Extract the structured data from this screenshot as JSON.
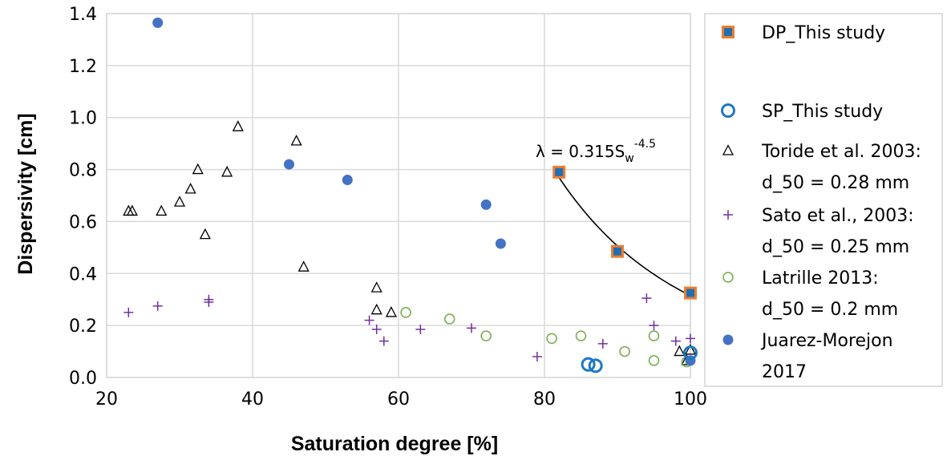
{
  "chart_data": {
    "type": "scatter",
    "xlabel": "Saturation degree [%]",
    "ylabel": "Dispersivity [cm]",
    "xlim": [
      20,
      100
    ],
    "ylim": [
      0,
      1.4
    ],
    "x_ticks": [
      "20",
      "40",
      "60",
      "80",
      "100"
    ],
    "y_ticks": [
      "0.0",
      "0.2",
      "0.4",
      "0.6",
      "0.8",
      "1.0",
      "1.2",
      "1.4"
    ],
    "grid": true,
    "legend_position": "right",
    "annotation": {
      "prefix": "λ = 0.315S",
      "subscript": "w",
      "superscript": "-4.5"
    },
    "fit_curve": {
      "coefficient": 0.315,
      "exponent": -4.5,
      "x_range": [
        82,
        100
      ]
    },
    "series": [
      {
        "name_lines": [
          "DP_This study"
        ],
        "marker": "square-filled",
        "color": "#1f6fb4",
        "edge_color": "#ed7d31",
        "points": [
          [
            82,
            0.79
          ],
          [
            90,
            0.485
          ],
          [
            100,
            0.325
          ]
        ]
      },
      {
        "name_lines": [
          "SP_This study"
        ],
        "marker": "circle-open-thick",
        "color": "#1f77c4",
        "points": [
          [
            86,
            0.05
          ],
          [
            87,
            0.045
          ],
          [
            100,
            0.095
          ]
        ]
      },
      {
        "name_lines": [
          "Toride et al. 2003:",
          "d_50 = 0.28 mm"
        ],
        "marker": "triangle-open",
        "color": "#000000",
        "points": [
          [
            23,
            0.64
          ],
          [
            23.5,
            0.64
          ],
          [
            27.5,
            0.64
          ],
          [
            30,
            0.675
          ],
          [
            31.5,
            0.725
          ],
          [
            32.5,
            0.8
          ],
          [
            33.5,
            0.55
          ],
          [
            36.5,
            0.79
          ],
          [
            38,
            0.965
          ],
          [
            46,
            0.91
          ],
          [
            47,
            0.425
          ],
          [
            57,
            0.345
          ],
          [
            57,
            0.26
          ],
          [
            59,
            0.25
          ],
          [
            98.5,
            0.1
          ],
          [
            99.5,
            0.065
          ],
          [
            100,
            0.105
          ]
        ]
      },
      {
        "name_lines": [
          "Sato et al., 2003:",
          "d_50 = 0.25 mm"
        ],
        "marker": "plus",
        "color": "#7030a0",
        "points": [
          [
            23,
            0.25
          ],
          [
            27,
            0.275
          ],
          [
            34,
            0.3
          ],
          [
            34,
            0.29
          ],
          [
            56,
            0.22
          ],
          [
            57,
            0.185
          ],
          [
            58,
            0.14
          ],
          [
            63,
            0.185
          ],
          [
            70,
            0.19
          ],
          [
            79,
            0.08
          ],
          [
            88,
            0.13
          ],
          [
            94,
            0.305
          ],
          [
            95,
            0.2
          ],
          [
            98,
            0.14
          ],
          [
            100,
            0.15
          ]
        ]
      },
      {
        "name_lines": [
          "Latrille 2013:",
          "d_50 = 0.2 mm"
        ],
        "marker": "circle-open",
        "color": "#70ad47",
        "points": [
          [
            61,
            0.25
          ],
          [
            67,
            0.225
          ],
          [
            72,
            0.16
          ],
          [
            81,
            0.15
          ],
          [
            85,
            0.16
          ],
          [
            91,
            0.1
          ],
          [
            95,
            0.16
          ],
          [
            95,
            0.065
          ],
          [
            99.5,
            0.06
          ]
        ]
      },
      {
        "name_lines": [
          "Juarez-Morejon",
          "2017"
        ],
        "marker": "circle-filled",
        "color": "#4472c4",
        "points": [
          [
            27,
            1.365
          ],
          [
            45,
            0.82
          ],
          [
            53,
            0.76
          ],
          [
            72,
            0.665
          ],
          [
            74,
            0.515
          ],
          [
            100,
            0.065
          ]
        ]
      }
    ]
  }
}
